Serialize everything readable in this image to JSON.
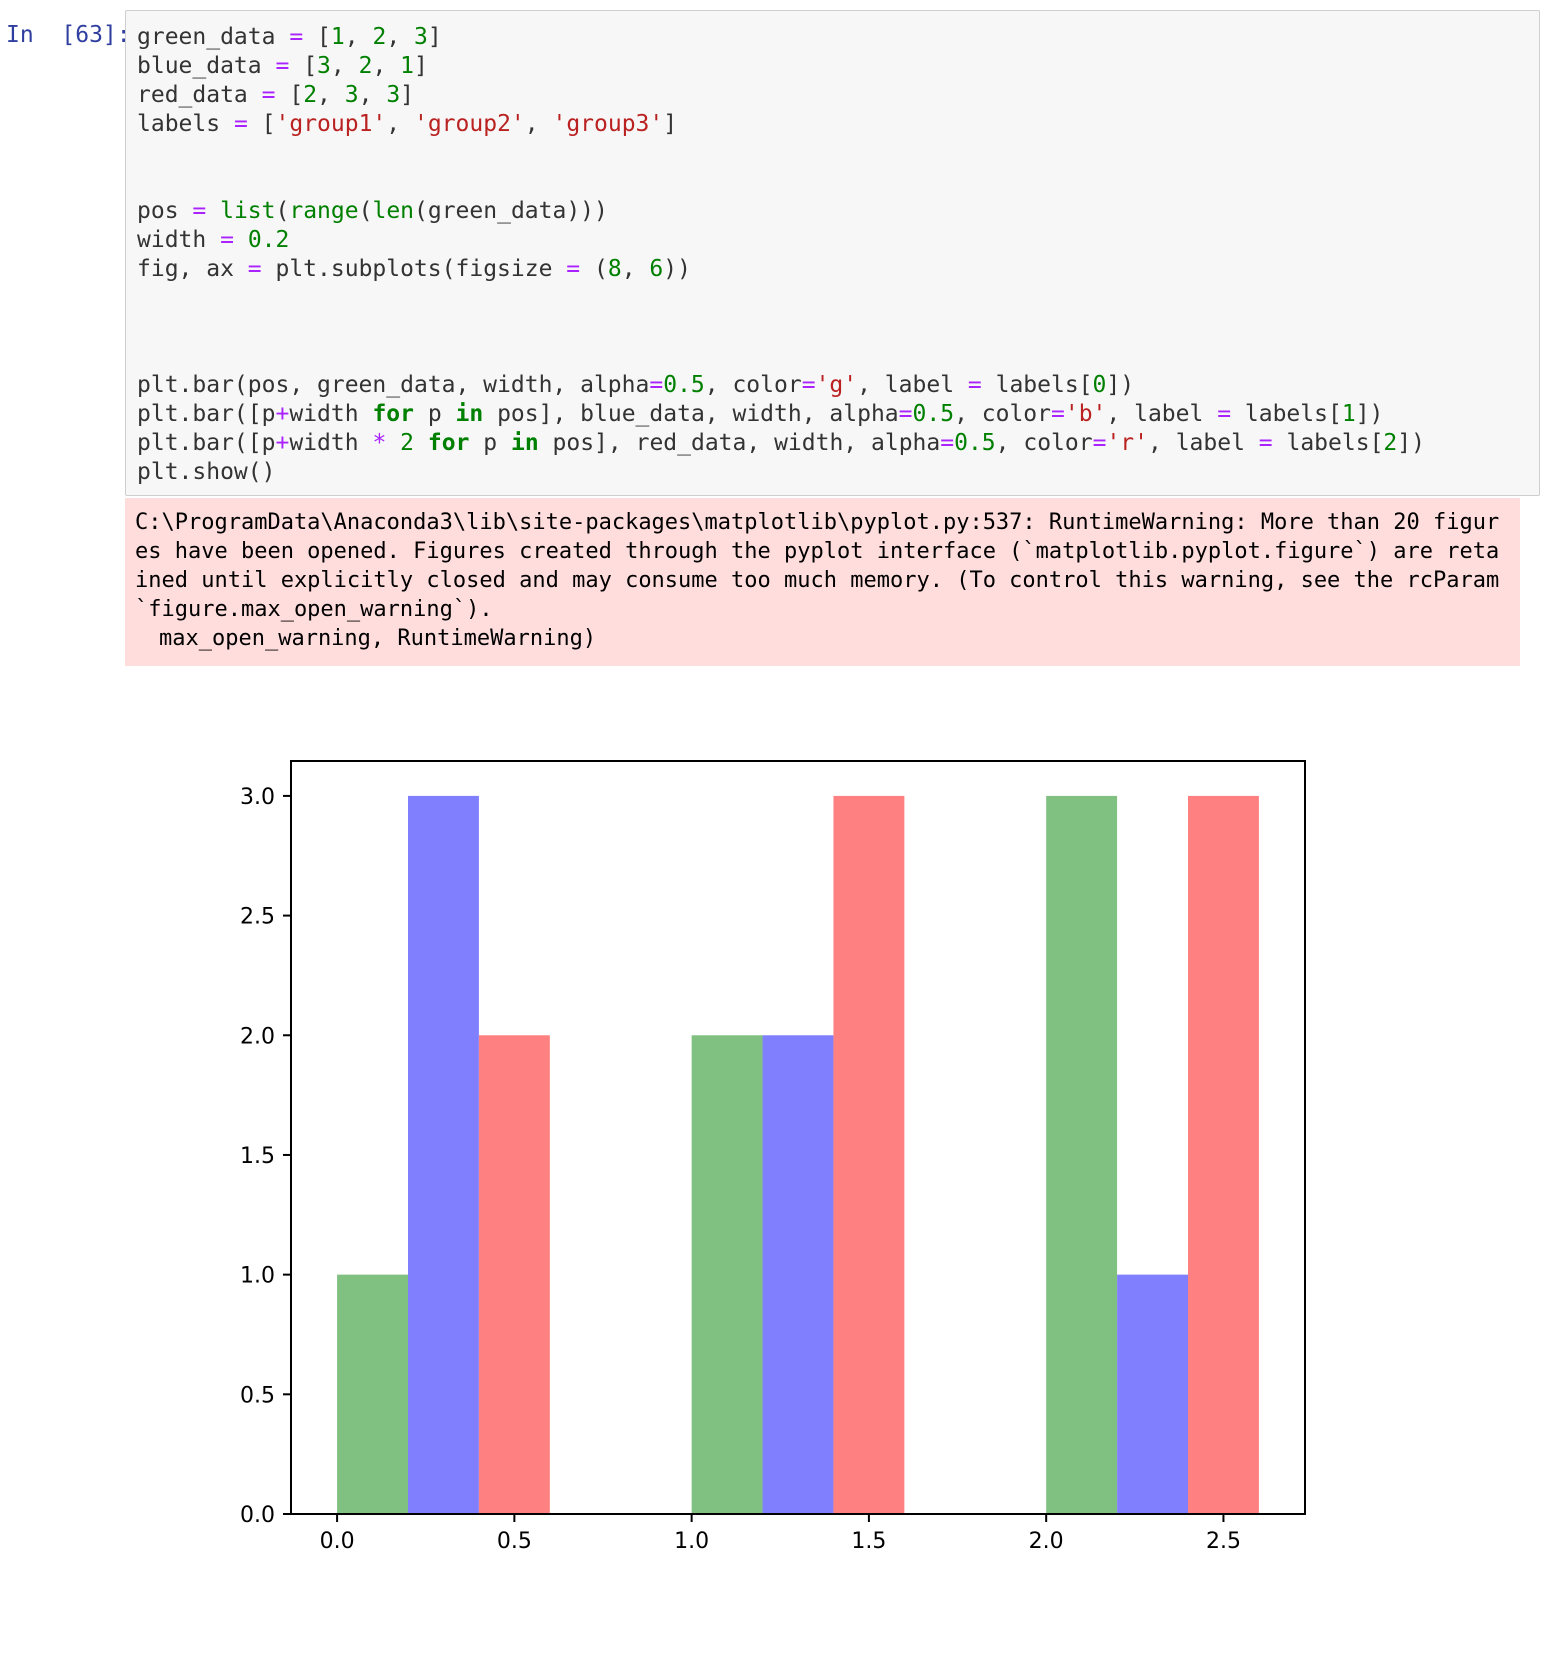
{
  "cell": {
    "prompt": "In  [63]:",
    "code_lines": [
      "green_data = [1, 2, 3]",
      "blue_data = [3, 2, 1]",
      "red_data = [2, 3, 3]",
      "labels = ['group1', 'group2', 'group3']",
      "",
      "",
      "pos = list(range(len(green_data)))",
      "width = 0.2",
      "fig, ax = plt.subplots(figsize = (8, 6))",
      "",
      "",
      "",
      "plt.bar(pos, green_data, width, alpha=0.5, color='g', label = labels[0])",
      "plt.bar([p+width for p in pos], blue_data, width, alpha=0.5, color='b', label = labels[1])",
      "plt.bar([p+width * 2 for p in pos], red_data, width, alpha=0.5, color='r', label = labels[2])",
      "plt.show()"
    ]
  },
  "stderr": {
    "message": "C:\\ProgramData\\Anaconda3\\lib\\site-packages\\matplotlib\\pyplot.py:537: RuntimeWarning: More than 20 figures have been opened. Figures created through the pyplot interface (`matplotlib.pyplot.figure`) are retained until explicitly closed and may consume too much memory. (To control this warning, see the rcParam `figure.max_open_warning`).",
    "detail": "max_open_warning, RuntimeWarning)"
  },
  "chart_data": {
    "type": "bar",
    "title": "",
    "xlabel": "",
    "ylabel": "",
    "bar_width": 0.2,
    "xlim": [
      -0.13,
      2.73
    ],
    "ylim": [
      0,
      3.15
    ],
    "xticks": [
      0.0,
      0.5,
      1.0,
      1.5,
      2.0,
      2.5
    ],
    "xtick_labels": [
      "0.0",
      "0.5",
      "1.0",
      "1.5",
      "2.0",
      "2.5"
    ],
    "yticks": [
      0.0,
      0.5,
      1.0,
      1.5,
      2.0,
      2.5,
      3.0
    ],
    "ytick_labels": [
      "0.0",
      "0.5",
      "1.0",
      "1.5",
      "2.0",
      "2.5",
      "3.0"
    ],
    "grid": false,
    "series": [
      {
        "color": "#80c080",
        "x": [
          0.0,
          1.0,
          2.0
        ],
        "values": [
          1,
          2,
          3
        ]
      },
      {
        "color": "#8080ff",
        "x": [
          0.2,
          1.2,
          2.2
        ],
        "values": [
          3,
          2,
          1
        ]
      },
      {
        "color": "#ff8080",
        "x": [
          0.4,
          1.4,
          2.4
        ],
        "values": [
          2,
          3,
          3
        ]
      }
    ]
  }
}
